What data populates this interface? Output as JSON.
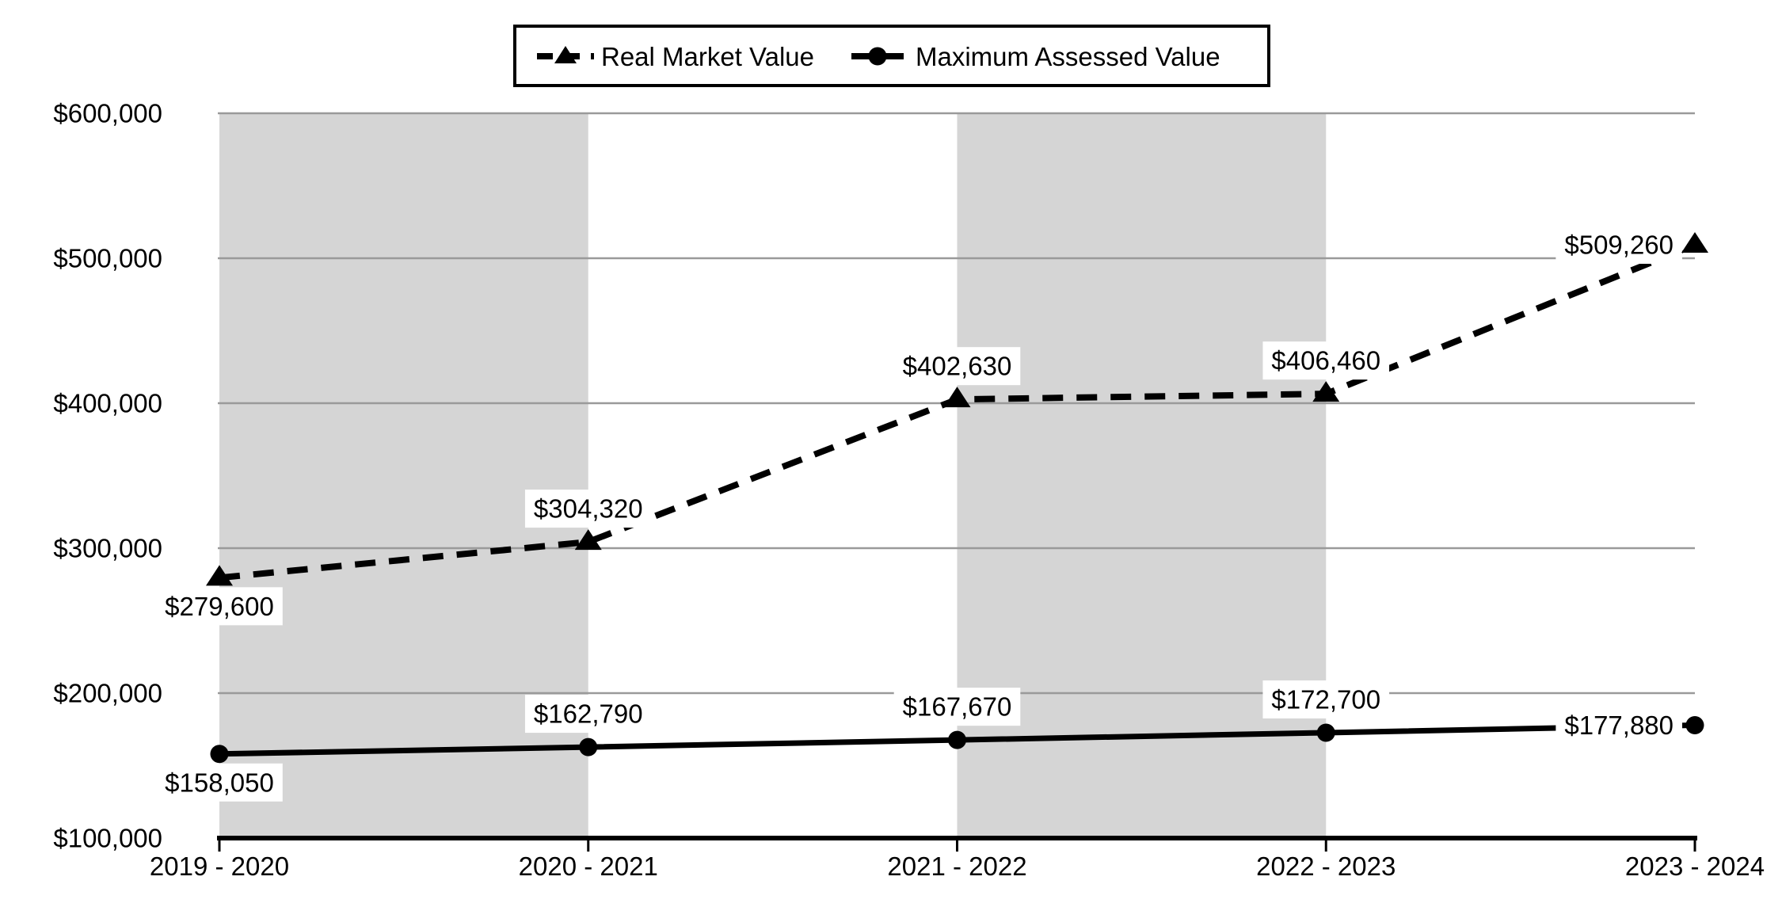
{
  "chart_data": {
    "type": "line",
    "title": "",
    "categories": [
      "2019 - 2020",
      "2020 - 2021",
      "2021 - 2022",
      "2022 - 2023",
      "2023 - 2024"
    ],
    "series": [
      {
        "name": "Real Market Value",
        "line_style": "dashed",
        "marker": "triangle",
        "color": "#000000",
        "values": [
          279600,
          304320,
          402630,
          406460,
          509260
        ],
        "data_labels": [
          "$279,600",
          "$304,320",
          "$402,630",
          "$406,460",
          "$509,260"
        ],
        "label_positions": [
          "below",
          "above",
          "above",
          "above",
          "left"
        ]
      },
      {
        "name": "Maximum Assessed Value",
        "line_style": "solid",
        "marker": "circle",
        "color": "#000000",
        "values": [
          158050,
          162790,
          167670,
          172700,
          177880
        ],
        "data_labels": [
          "$158,050",
          "$162,790",
          "$167,670",
          "$172,700",
          "$177,880"
        ],
        "label_positions": [
          "below",
          "above",
          "above",
          "above",
          "left"
        ]
      }
    ],
    "y_axis": {
      "min": 100000,
      "max": 600000,
      "step": 100000,
      "tick_labels": [
        "$100,000",
        "$200,000",
        "$300,000",
        "$400,000",
        "$500,000",
        "$600,000"
      ]
    },
    "x_axis": {
      "tick_labels": [
        "2019 - 2020",
        "2020 - 2021",
        "2021 - 2022",
        "2022 - 2023",
        "2023 - 2024"
      ]
    },
    "grid": "horizontal",
    "legend_position": "top-center",
    "plot_bands": {
      "segments": [
        [
          0,
          1
        ],
        [
          2,
          3
        ]
      ]
    }
  },
  "legend": {
    "items": [
      {
        "label": "Real Market Value",
        "marker": "triangle",
        "line_style": "dashed"
      },
      {
        "label": "Maximum Assessed Value",
        "marker": "circle",
        "line_style": "solid"
      }
    ]
  },
  "colors": {
    "series": "#000000",
    "gridline": "#9a9a9a",
    "band_fill": "#d5d5d5",
    "axis_line": "#000000",
    "label_background": "#ffffff",
    "legend_border": "#000000",
    "background": "#ffffff",
    "text": "#000000"
  }
}
